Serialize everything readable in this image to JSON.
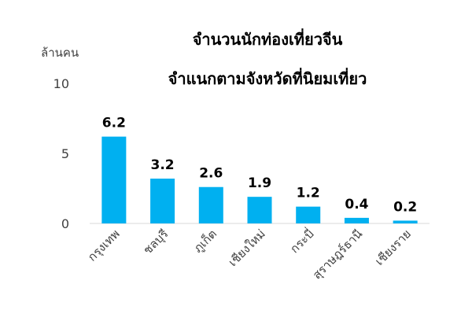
{
  "chart_data": {
    "type": "bar",
    "title_line1": "จำนวนนักท่องเที่ยวจีน",
    "title_line2": "จำแนกตามจังหวัดที่นิยมเที่ยว",
    "y_unit_label": "ล้านคน",
    "categories": [
      "กรุงเทพ",
      "ชลบุรี",
      "ภูเก็ต",
      "เชียงใหม่",
      "กระบี่",
      "สุราษฎร์ธานี",
      "เชียงราย"
    ],
    "values": [
      6.2,
      3.2,
      2.6,
      1.9,
      1.2,
      0.4,
      0.2
    ],
    "value_labels": [
      "6.2",
      "3.2",
      "2.6",
      "1.9",
      "1.2",
      "0.4",
      "0.2"
    ],
    "y_ticks": [
      0,
      5,
      10
    ],
    "y_tick_labels": [
      "0",
      "5",
      "10"
    ],
    "ylim": [
      0,
      10
    ],
    "grid": false,
    "legend": "none",
    "bar_color": "#00b0f0",
    "axis_color": "#d9d9d9"
  }
}
